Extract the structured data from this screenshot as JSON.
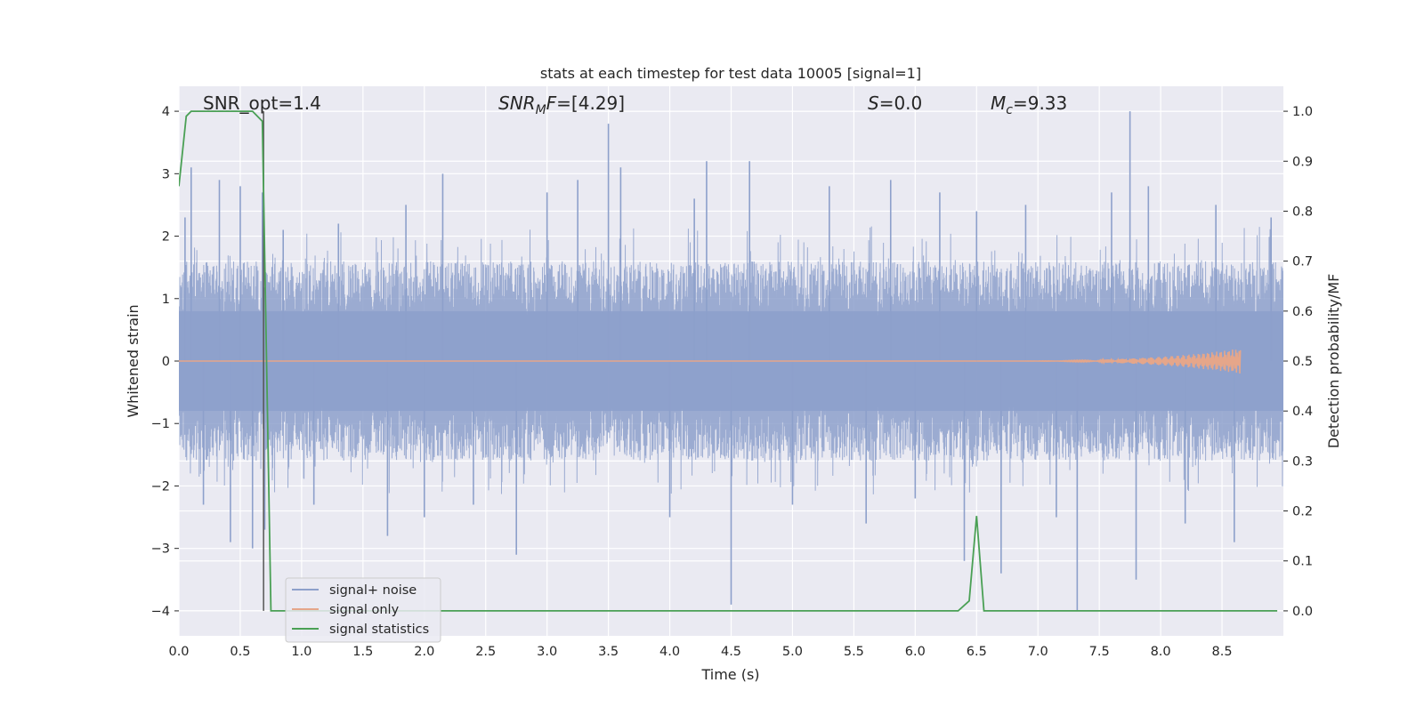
{
  "chart_data": {
    "type": "line",
    "title": "stats at each timestep for test data 10005 [signal=1]",
    "xlabel": "Time (s)",
    "ylabel_left": "Whitened strain",
    "ylabel_right": "Detection probability/MF",
    "xlim": [
      0,
      9.0
    ],
    "ylim_left": [
      -4.4,
      4.4
    ],
    "ylim_right": [
      -0.05,
      1.05
    ],
    "x_ticks": [
      "0.0",
      "0.5",
      "1.0",
      "1.5",
      "2.0",
      "2.5",
      "3.0",
      "3.5",
      "4.0",
      "4.5",
      "5.0",
      "5.5",
      "6.0",
      "6.5",
      "7.0",
      "7.5",
      "8.0",
      "8.5"
    ],
    "y_left_ticks": [
      "−4",
      "−3",
      "−2",
      "−1",
      "0",
      "1",
      "2",
      "3",
      "4"
    ],
    "y_right_ticks": [
      "0.0",
      "0.1",
      "0.2",
      "0.3",
      "0.4",
      "0.5",
      "0.6",
      "0.7",
      "0.8",
      "0.9",
      "1.0"
    ],
    "grid": true,
    "legend_position": "lower-left",
    "annotations": {
      "snr_opt": "SNR_opt=1.4",
      "snr_mf_main": "SNR",
      "snr_mf_sub": "M",
      "snr_mf_rest": "F",
      "snr_mf_value": "=[4.29]",
      "s_symbol": "S",
      "s_value": "=0.0",
      "mc_symbol": "M",
      "mc_sub": "c",
      "mc_value": "=9.33"
    },
    "vertical_marker_x": 0.69,
    "series": [
      {
        "name": "signal+ noise",
        "color": "#8da0cb",
        "axis": "left",
        "description_points": "dense whitened noise, approx. uniform band",
        "band": [
          -1.6,
          1.6
        ],
        "spikes": [
          [
            0.05,
            2.3
          ],
          [
            0.1,
            3.1
          ],
          [
            0.2,
            -2.3
          ],
          [
            0.33,
            2.9
          ],
          [
            0.42,
            -2.9
          ],
          [
            0.5,
            2.8
          ],
          [
            0.6,
            -3.0
          ],
          [
            0.68,
            2.7
          ],
          [
            0.7,
            -2.7
          ],
          [
            0.85,
            2.1
          ],
          [
            1.1,
            -2.3
          ],
          [
            1.3,
            2.2
          ],
          [
            1.7,
            -2.8
          ],
          [
            1.85,
            2.5
          ],
          [
            2.0,
            -2.5
          ],
          [
            2.15,
            3.0
          ],
          [
            2.4,
            -2.3
          ],
          [
            2.75,
            -3.1
          ],
          [
            3.0,
            2.7
          ],
          [
            3.25,
            2.9
          ],
          [
            3.5,
            3.8
          ],
          [
            3.6,
            3.1
          ],
          [
            4.0,
            -2.5
          ],
          [
            4.2,
            2.6
          ],
          [
            4.3,
            3.2
          ],
          [
            4.5,
            -3.9
          ],
          [
            4.65,
            3.2
          ],
          [
            5.0,
            -2.3
          ],
          [
            5.3,
            2.8
          ],
          [
            5.6,
            -2.6
          ],
          [
            5.8,
            2.9
          ],
          [
            6.0,
            -2.2
          ],
          [
            6.2,
            2.7
          ],
          [
            6.4,
            -3.2
          ],
          [
            6.5,
            2.4
          ],
          [
            6.7,
            -3.4
          ],
          [
            6.9,
            2.5
          ],
          [
            7.15,
            -2.5
          ],
          [
            7.32,
            -4.0
          ],
          [
            7.6,
            2.7
          ],
          [
            7.75,
            4.0
          ],
          [
            7.8,
            -3.5
          ],
          [
            7.9,
            2.8
          ],
          [
            8.2,
            -2.6
          ],
          [
            8.45,
            2.5
          ],
          [
            8.6,
            -2.9
          ],
          [
            8.9,
            2.3
          ]
        ]
      },
      {
        "name": "signal only",
        "color": "#e5a68a",
        "axis": "left",
        "chirp": {
          "start": 6.5,
          "end": 8.65,
          "peak_amplitude": 0.2
        }
      },
      {
        "name": "signal statistics",
        "color": "#4aa055",
        "axis": "right",
        "x": [
          0.0,
          0.06,
          0.1,
          0.2,
          0.6,
          0.68,
          0.7,
          0.75,
          6.35,
          6.44,
          6.5,
          6.56,
          8.95
        ],
        "y": [
          0.85,
          0.99,
          1.0,
          1.0,
          1.0,
          0.98,
          0.7,
          0.0,
          0.0,
          0.02,
          0.19,
          0.0,
          0.0
        ]
      }
    ]
  }
}
